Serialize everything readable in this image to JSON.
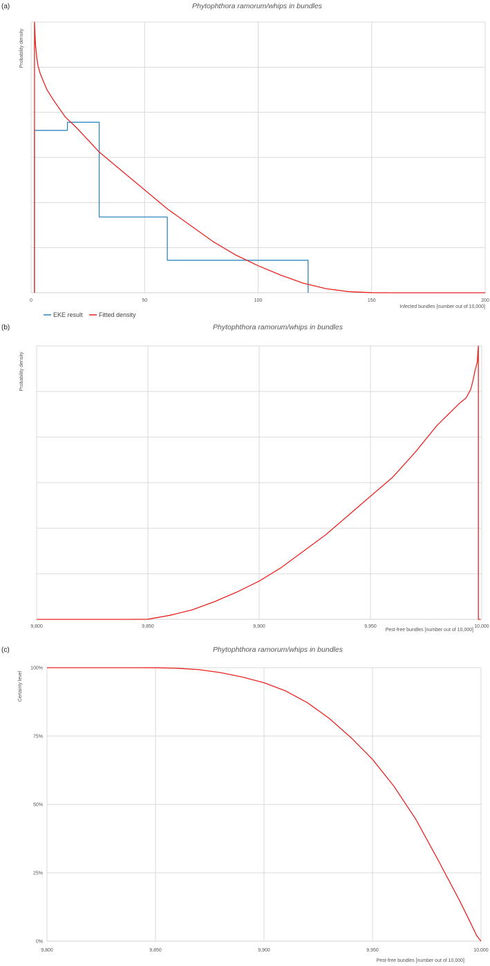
{
  "chart_data": [
    {
      "panel_label": "(a)",
      "type": "line",
      "title": "Phytophthora ramorum/whips in bundles",
      "xlabel": "Infected bundles [number out of 10,000]",
      "ylabel": "Probability density",
      "xlim": [
        0,
        200
      ],
      "ylim": [
        0,
        1
      ],
      "x_ticks": [
        0,
        50,
        100,
        150,
        200
      ],
      "x_tick_labels": [
        "0",
        "50",
        "100",
        "150",
        "200"
      ],
      "y_tick_labels": [],
      "grid": true,
      "legend": "bottom-left",
      "series": [
        {
          "name": "EKE result",
          "color": "#2e86c1",
          "kind": "step",
          "x": [
            1.5,
            1.5,
            16,
            16,
            30,
            30,
            60,
            60,
            122,
            122
          ],
          "y": [
            0,
            0.6,
            0.6,
            0.63,
            0.63,
            0.28,
            0.28,
            0.12,
            0.12,
            0
          ]
        },
        {
          "name": "Fitted density",
          "color": "#e8231f",
          "kind": "line",
          "x": [
            1.5,
            1.5,
            1.6,
            1.8,
            2,
            2.5,
            3,
            4,
            5,
            7,
            10,
            15,
            20,
            30,
            40,
            50,
            60,
            70,
            80,
            90,
            100,
            110,
            120,
            130,
            140,
            150,
            160,
            200
          ],
          "y": [
            0,
            1.0,
            0.98,
            0.94,
            0.91,
            0.87,
            0.84,
            0.81,
            0.79,
            0.75,
            0.71,
            0.65,
            0.61,
            0.52,
            0.45,
            0.38,
            0.31,
            0.25,
            0.19,
            0.14,
            0.1,
            0.065,
            0.035,
            0.015,
            0.004,
            0.0005,
            0,
            0
          ]
        }
      ]
    },
    {
      "panel_label": "(b)",
      "type": "line",
      "title": "Phytophthora ramorum/whips in bundles",
      "xlabel": "Pest-free bundles [number out of 10,000]",
      "ylabel": "Probability density",
      "xlim": [
        9800,
        10000
      ],
      "ylim": [
        0,
        1
      ],
      "x_ticks": [
        9800,
        9850,
        9900,
        9950,
        10000
      ],
      "x_tick_labels": [
        "9,800",
        "9,850",
        "9,900",
        "9,950",
        "10,000"
      ],
      "y_tick_labels": [],
      "grid": true,
      "legend": "none",
      "series": [
        {
          "color": "#e8231f",
          "kind": "line",
          "x": [
            9800,
            9840,
            9850,
            9860,
            9870,
            9880,
            9890,
            9900,
            9910,
            9920,
            9930,
            9940,
            9950,
            9960,
            9970,
            9980,
            9985,
            9990,
            9993,
            9995,
            9996,
            9997,
            9998,
            9998.3,
            9998.5,
            9998.5,
            9999.5
          ],
          "y": [
            0,
            0,
            0.0005,
            0.015,
            0.035,
            0.065,
            0.1,
            0.14,
            0.19,
            0.25,
            0.31,
            0.38,
            0.45,
            0.52,
            0.61,
            0.71,
            0.75,
            0.79,
            0.81,
            0.84,
            0.87,
            0.91,
            0.94,
            0.98,
            1.0,
            0,
            0
          ]
        }
      ]
    },
    {
      "panel_label": "(c)",
      "type": "line",
      "title": "Phytophthora ramorum/whips in bundles",
      "xlabel": "Pest-free bundles [number out of 10,000]",
      "ylabel": "Certainty level",
      "xlim": [
        9800,
        10000
      ],
      "ylim": [
        0,
        1
      ],
      "x_ticks": [
        9800,
        9850,
        9900,
        9950,
        10000
      ],
      "x_tick_labels": [
        "9,800",
        "9,850",
        "9,900",
        "9,950",
        "10,000"
      ],
      "y_ticks": [
        0,
        0.25,
        0.5,
        0.75,
        1
      ],
      "y_tick_labels": [
        "0%",
        "25%",
        "50%",
        "75%",
        "100%"
      ],
      "grid": true,
      "legend": "none",
      "series": [
        {
          "color": "#e8231f",
          "kind": "line",
          "x": [
            9800,
            9840,
            9850,
            9860,
            9870,
            9880,
            9890,
            9900,
            9910,
            9920,
            9930,
            9940,
            9950,
            9960,
            9970,
            9980,
            9990,
            9995,
            9998,
            10000
          ],
          "y": [
            1,
            1,
            0.9998,
            0.998,
            0.993,
            0.982,
            0.966,
            0.945,
            0.915,
            0.872,
            0.815,
            0.745,
            0.665,
            0.565,
            0.445,
            0.3,
            0.15,
            0.07,
            0.02,
            0
          ]
        }
      ]
    }
  ]
}
